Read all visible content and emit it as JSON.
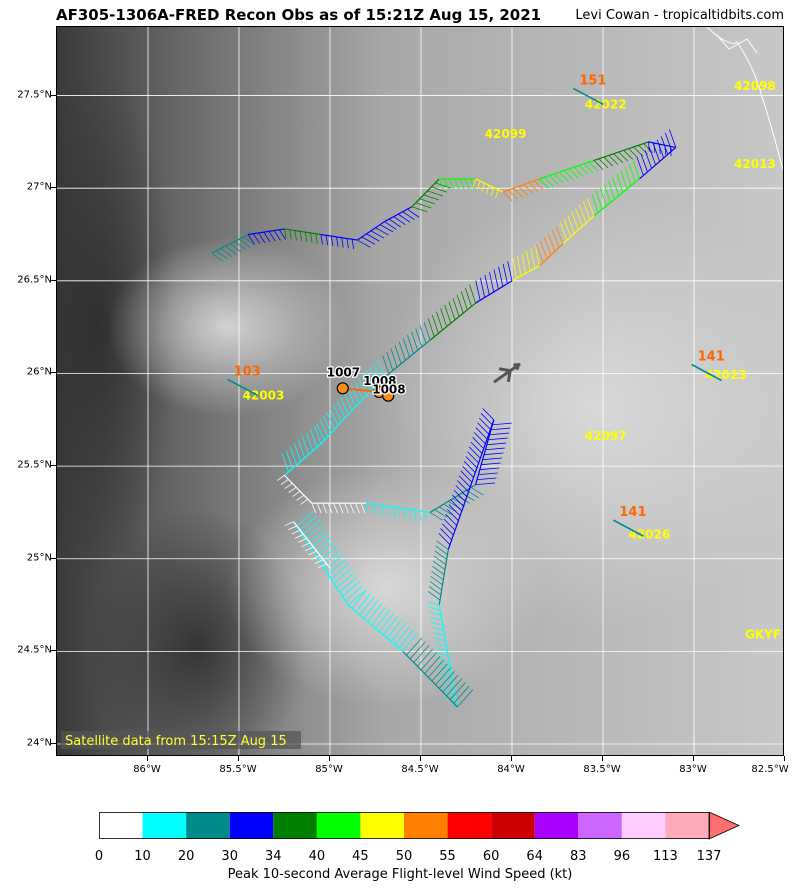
{
  "header": {
    "title": "AF305-1306A-FRED Recon Obs as of 15:21Z Aug 15, 2021",
    "credit": "Levi Cowan - tropicaltidbits.com"
  },
  "map": {
    "lon_range": [
      -86.5,
      -82.5
    ],
    "lat_range": [
      23.93,
      27.87
    ],
    "lat_ticks": [
      {
        "value": 24.0,
        "label": "24°N"
      },
      {
        "value": 24.5,
        "label": "24.5°N"
      },
      {
        "value": 25.0,
        "label": "25°N"
      },
      {
        "value": 25.5,
        "label": "25.5°N"
      },
      {
        "value": 26.0,
        "label": "26°N"
      },
      {
        "value": 26.5,
        "label": "26.5°N"
      },
      {
        "value": 27.0,
        "label": "27°N"
      },
      {
        "value": 27.5,
        "label": "27.5°N"
      }
    ],
    "lon_ticks": [
      {
        "value": -86.0,
        "label": "86°W"
      },
      {
        "value": -85.5,
        "label": "85.5°W"
      },
      {
        "value": -85.0,
        "label": "85°W"
      },
      {
        "value": -84.5,
        "label": "84.5°W"
      },
      {
        "value": -84.0,
        "label": "84°W"
      },
      {
        "value": -83.5,
        "label": "83.5°W"
      },
      {
        "value": -83.0,
        "label": "83°W"
      },
      {
        "value": -82.5,
        "label": "82.5°W"
      }
    ],
    "grid": true,
    "satellite_note": "Satellite data from 15:15Z Aug 15",
    "label_colors": {
      "station": "#ffff00",
      "wind": "#ff6600"
    },
    "stations": [
      {
        "id": "42099",
        "lon": -84.15,
        "lat": 27.27
      },
      {
        "id": "42098",
        "lon": -82.78,
        "lat": 27.53
      },
      {
        "id": "42013",
        "lon": -82.78,
        "lat": 27.11
      },
      {
        "id": "42022",
        "lon": -83.6,
        "lat": 27.43
      },
      {
        "id": "42003",
        "lon": -85.48,
        "lat": 25.86
      },
      {
        "id": "42023",
        "lon": -82.94,
        "lat": 25.97
      },
      {
        "id": "42097",
        "lon": -83.6,
        "lat": 25.64
      },
      {
        "id": "42026",
        "lon": -83.36,
        "lat": 25.11
      },
      {
        "id": "GKYF1",
        "lon": -82.72,
        "lat": 24.57
      }
    ],
    "station_winds": [
      {
        "value": "151",
        "lon": -83.63,
        "lat": 27.56
      },
      {
        "value": "141",
        "lon": -82.98,
        "lat": 26.07
      },
      {
        "value": "141",
        "lon": -83.41,
        "lat": 25.23
      },
      {
        "value": "103",
        "lon": -85.53,
        "lat": 25.99
      }
    ],
    "pressure_obs": [
      {
        "value": "1007",
        "lon": -84.93,
        "lat": 25.92
      },
      {
        "value": "1008",
        "lon": -84.73,
        "lat": 25.9
      },
      {
        "value": "1008",
        "lon": -84.68,
        "lat": 25.88
      }
    ],
    "flight_track": [
      {
        "lon": -85.65,
        "lat": 26.65,
        "kt": 20
      },
      {
        "lon": -85.45,
        "lat": 26.75,
        "kt": 30
      },
      {
        "lon": -85.25,
        "lat": 26.78,
        "kt": 34
      },
      {
        "lon": -85.05,
        "lat": 26.75,
        "kt": 30
      },
      {
        "lon": -84.85,
        "lat": 26.72,
        "kt": 30
      },
      {
        "lon": -84.7,
        "lat": 26.82,
        "kt": 30
      },
      {
        "lon": -84.55,
        "lat": 26.9,
        "kt": 34
      },
      {
        "lon": -84.4,
        "lat": 27.05,
        "kt": 40
      },
      {
        "lon": -84.2,
        "lat": 27.05,
        "kt": 45
      },
      {
        "lon": -84.05,
        "lat": 26.98,
        "kt": 50
      },
      {
        "lon": -83.85,
        "lat": 27.05,
        "kt": 40
      },
      {
        "lon": -83.55,
        "lat": 27.15,
        "kt": 34
      },
      {
        "lon": -83.25,
        "lat": 27.25,
        "kt": 30
      },
      {
        "lon": -83.1,
        "lat": 27.22,
        "kt": 30
      },
      {
        "lon": -83.3,
        "lat": 27.05,
        "kt": 40
      },
      {
        "lon": -83.55,
        "lat": 26.85,
        "kt": 45
      },
      {
        "lon": -83.72,
        "lat": 26.7,
        "kt": 50
      },
      {
        "lon": -83.85,
        "lat": 26.58,
        "kt": 45
      },
      {
        "lon": -84.0,
        "lat": 26.5,
        "kt": 30
      },
      {
        "lon": -84.2,
        "lat": 26.38,
        "kt": 34
      },
      {
        "lon": -84.45,
        "lat": 26.18,
        "kt": 20
      },
      {
        "lon": -84.7,
        "lat": 25.98,
        "kt": 10
      },
      {
        "lon": -84.9,
        "lat": 25.78,
        "kt": 10
      },
      {
        "lon": -85.05,
        "lat": 25.62,
        "kt": 10
      },
      {
        "lon": -85.25,
        "lat": 25.45,
        "kt": 0
      },
      {
        "lon": -85.1,
        "lat": 25.3,
        "kt": 0
      },
      {
        "lon": -84.8,
        "lat": 25.3,
        "kt": 10
      },
      {
        "lon": -84.45,
        "lat": 25.25,
        "kt": 20
      },
      {
        "lon": -84.2,
        "lat": 25.4,
        "kt": 30
      },
      {
        "lon": -84.1,
        "lat": 25.75,
        "kt": 30
      },
      {
        "lon": -84.35,
        "lat": 25.05,
        "kt": 20
      },
      {
        "lon": -84.4,
        "lat": 24.75,
        "kt": 10
      },
      {
        "lon": -84.3,
        "lat": 24.2,
        "kt": 20
      },
      {
        "lon": -84.6,
        "lat": 24.5,
        "kt": 10
      },
      {
        "lon": -84.9,
        "lat": 24.75,
        "kt": 10
      },
      {
        "lon": -85.2,
        "lat": 25.2,
        "kt": 0
      },
      {
        "lon": -85.0,
        "lat": 24.95,
        "kt": 0
      }
    ]
  },
  "colorbar": {
    "label": "Peak 10-second Average Flight-level Wind Speed (kt)",
    "ticks": [
      "0",
      "10",
      "20",
      "30",
      "34",
      "40",
      "45",
      "50",
      "55",
      "60",
      "64",
      "83",
      "96",
      "113",
      "137"
    ],
    "colors": [
      "#ffffff",
      "#00ffff",
      "#008b8b",
      "#0000ff",
      "#008000",
      "#00ff00",
      "#ffff00",
      "#ff8000",
      "#ff0000",
      "#cc0000",
      "#aa00ff",
      "#cc66ff",
      "#ffccff",
      "#ffaabb"
    ],
    "extend_color": "#ff6f6f"
  }
}
